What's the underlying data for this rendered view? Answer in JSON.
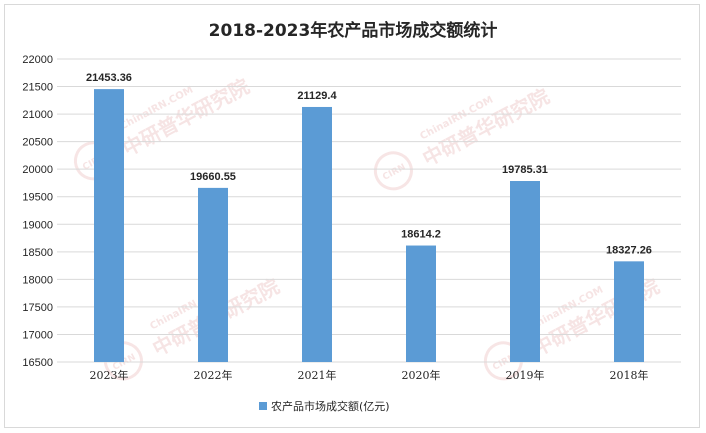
{
  "watermark": {
    "url_text": "ChinaIRN.COM",
    "name_text": "中研普华研究院",
    "logo_text": "CIRN"
  },
  "chart_data": {
    "type": "bar",
    "title": "2018-2023年农产品市场成交额统计",
    "categories": [
      "2023年",
      "2022年",
      "2021年",
      "2020年",
      "2019年",
      "2018年"
    ],
    "series": [
      {
        "name": "农产品市场成交额(亿元)",
        "values": [
          21453.36,
          19660.55,
          21129.4,
          18614.2,
          19785.31,
          18327.26
        ],
        "labels": [
          "21453.36",
          "19660.55",
          "21129.4",
          "18614.2",
          "19785.31",
          "18327.26"
        ],
        "color": "#5b9bd5"
      }
    ],
    "ylim": [
      16500,
      22000
    ],
    "ystep": 500,
    "grid": true,
    "legend": "bottom"
  }
}
